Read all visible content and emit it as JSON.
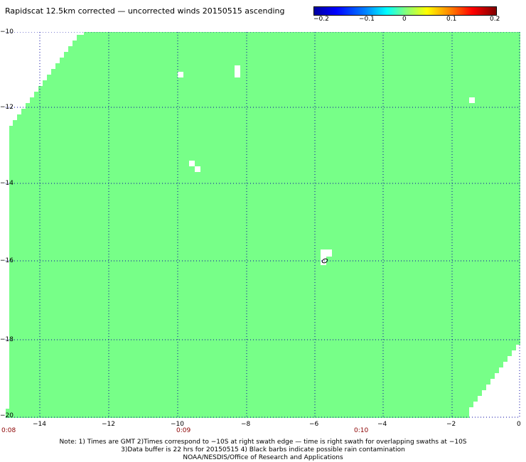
{
  "title": "Rapidscat 12.5km corrected — uncorrected winds 20150515 ascending",
  "colorbar": {
    "ticks": [
      "−0.2",
      "−0.1",
      "0",
      "0.1",
      "0.2"
    ]
  },
  "map": {
    "lat_labels": [
      "−10",
      "−12",
      "−14",
      "−16",
      "−18",
      "−20"
    ],
    "lon_labels": [
      "−14",
      "−12",
      "−10",
      "−8",
      "−6",
      "−4",
      "−2",
      "0"
    ],
    "time_labels": [
      "0:08",
      "0:09",
      "0:10"
    ],
    "field_color": "#77ff88",
    "grid_color": "#0000a0",
    "lat_range": [
      -20,
      -10
    ],
    "lon_range": [
      -15,
      0
    ]
  },
  "notes": {
    "line1": "Note: 1) Times are GMT 2)Times correspond to −10S at right swath edge — time is right swath for overlapping swaths at −10S",
    "line2": "3)Data buffer is 22 hrs for 20150515 4) Black barbs indicate possible rain contamination",
    "line3": "NOAA/NESDIS/Office of Research and Applications"
  }
}
